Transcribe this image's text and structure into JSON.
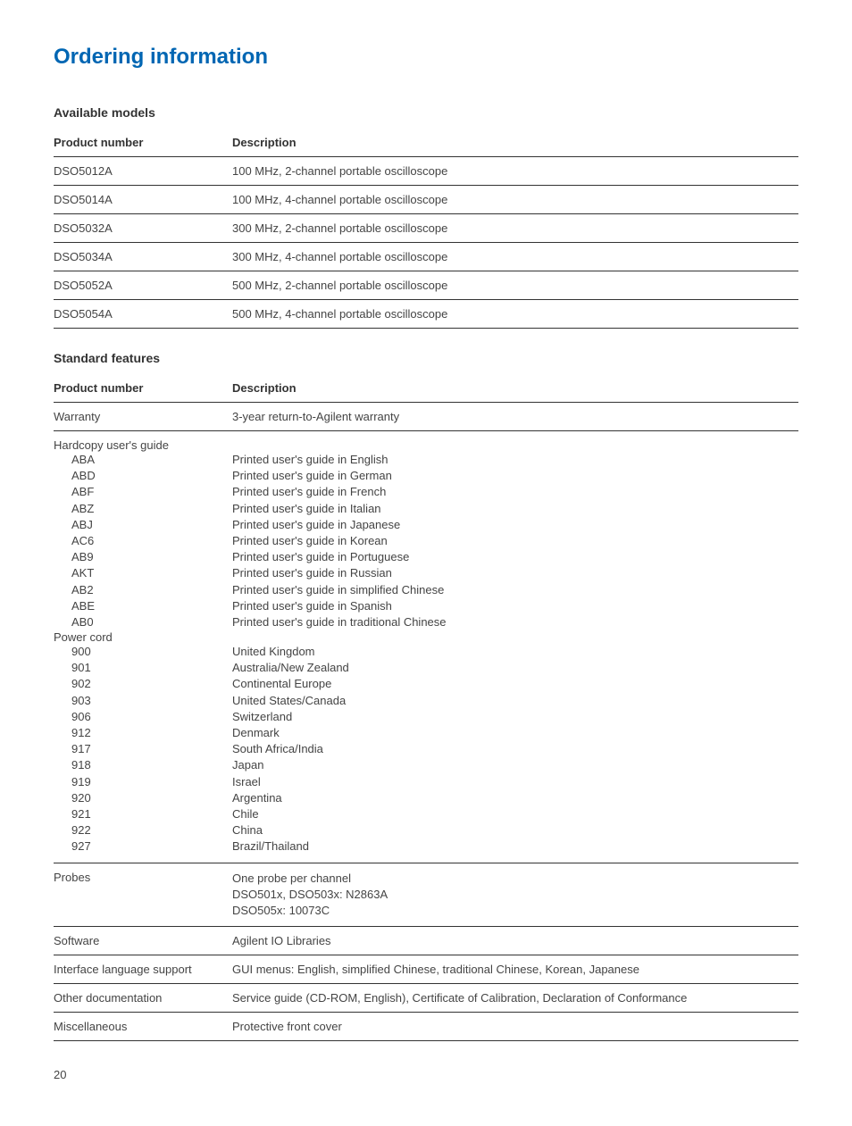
{
  "page_title": "Ordering information",
  "page_number": "20",
  "tables": {
    "models": {
      "title": "Available models",
      "headers": {
        "col1": "Product number",
        "col2": "Description"
      },
      "rows": [
        {
          "p": "DSO5012A",
          "d": "100 MHz, 2-channel portable oscilloscope"
        },
        {
          "p": "DSO5014A",
          "d": "100 MHz, 4-channel portable oscilloscope"
        },
        {
          "p": "DSO5032A",
          "d": "300 MHz, 2-channel portable oscilloscope"
        },
        {
          "p": "DSO5034A",
          "d": "300 MHz, 4-channel portable oscilloscope"
        },
        {
          "p": "DSO5052A",
          "d": "500 MHz, 2-channel portable oscilloscope"
        },
        {
          "p": "DSO5054A",
          "d": "500 MHz, 4-channel portable oscilloscope"
        }
      ]
    },
    "features": {
      "title": "Standard features",
      "headers": {
        "col1": "Product number",
        "col2": "Description"
      },
      "warranty": {
        "p": "Warranty",
        "d": "3-year return-to-Agilent warranty"
      },
      "hardcopy_title": "Hardcopy user's guide",
      "hardcopy": [
        {
          "p": "ABA",
          "d": "Printed user's guide in English"
        },
        {
          "p": "ABD",
          "d": "Printed user's guide in German"
        },
        {
          "p": "ABF",
          "d": "Printed user's guide in French"
        },
        {
          "p": "ABZ",
          "d": "Printed user's guide in Italian"
        },
        {
          "p": "ABJ",
          "d": "Printed user's guide in Japanese"
        },
        {
          "p": "AC6",
          "d": "Printed user's guide in Korean"
        },
        {
          "p": "AB9",
          "d": "Printed user's guide in Portuguese"
        },
        {
          "p": "AKT",
          "d": "Printed user's guide in Russian"
        },
        {
          "p": "AB2",
          "d": "Printed user's guide in simplified Chinese"
        },
        {
          "p": "ABE",
          "d": "Printed user's guide in Spanish"
        },
        {
          "p": "AB0",
          "d": "Printed user's guide in traditional Chinese"
        }
      ],
      "powercord_title": "Power cord",
      "powercord": [
        {
          "p": "900",
          "d": "United Kingdom"
        },
        {
          "p": "901",
          "d": "Australia/New Zealand"
        },
        {
          "p": "902",
          "d": "Continental Europe"
        },
        {
          "p": "903",
          "d": "United States/Canada"
        },
        {
          "p": "906",
          "d": "Switzerland"
        },
        {
          "p": "912",
          "d": "Denmark"
        },
        {
          "p": "917",
          "d": "South Africa/India"
        },
        {
          "p": "918",
          "d": "Japan"
        },
        {
          "p": "919",
          "d": "Israel"
        },
        {
          "p": "920",
          "d": "Argentina"
        },
        {
          "p": "921",
          "d": "Chile"
        },
        {
          "p": "922",
          "d": "China"
        },
        {
          "p": "927",
          "d": "Brazil/Thailand"
        }
      ],
      "probes": {
        "p": "Probes",
        "d1": "One probe per channel",
        "d2": "DSO501x, DSO503x: N2863A",
        "d3": "DSO505x: 10073C"
      },
      "software": {
        "p": "Software",
        "d": "Agilent IO Libraries"
      },
      "interface": {
        "p": "Interface language support",
        "d": "GUI menus: English, simplified Chinese, traditional Chinese, Korean, Japanese"
      },
      "otherdoc": {
        "p": "Other documentation",
        "d": "Service guide (CD-ROM, English), Certificate of Calibration, Declaration of Conformance"
      },
      "misc": {
        "p": "Miscellaneous",
        "d": "Protective front cover"
      }
    }
  }
}
